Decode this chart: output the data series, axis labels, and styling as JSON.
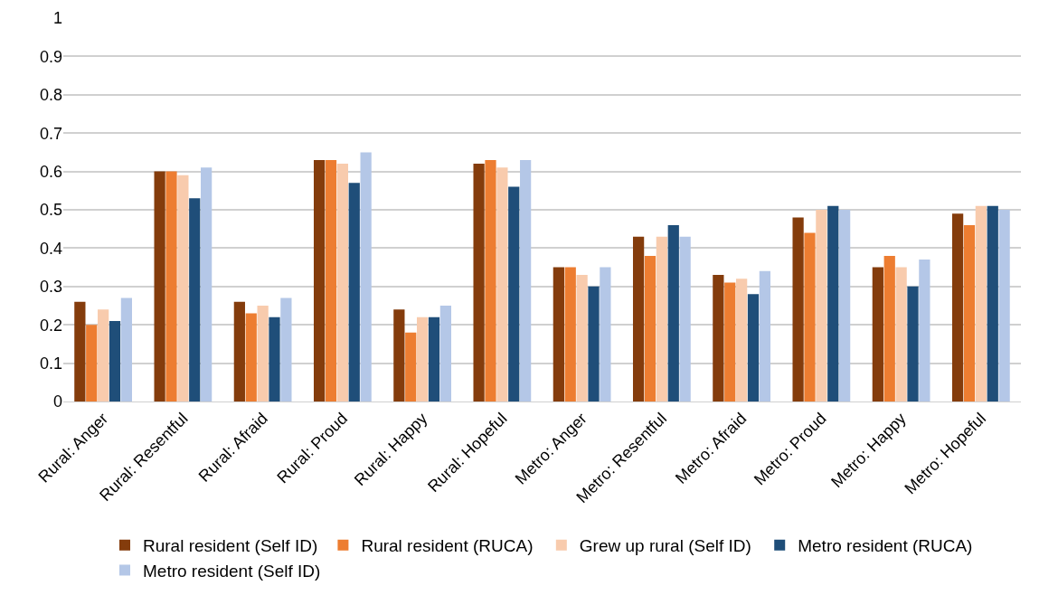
{
  "chart_data": {
    "type": "bar",
    "categories": [
      "Rural: Anger",
      "Rural: Resentful",
      "Rural: Afraid",
      "Rural: Proud",
      "Rural: Happy",
      "Rural: Hopeful",
      "Metro: Anger",
      "Metro: Resentful",
      "Metro: Afraid",
      "Metro: Proud",
      "Metro: Happy",
      "Metro: Hopeful"
    ],
    "series": [
      {
        "name": "Rural resident (Self ID)",
        "color": "#843c0c",
        "values": [
          0.26,
          0.6,
          0.26,
          0.63,
          0.24,
          0.62,
          0.35,
          0.43,
          0.33,
          0.48,
          0.35,
          0.49
        ]
      },
      {
        "name": "Rural resident (RUCA)",
        "color": "#ed7d31",
        "values": [
          0.2,
          0.6,
          0.23,
          0.63,
          0.18,
          0.63,
          0.35,
          0.38,
          0.31,
          0.44,
          0.38,
          0.46
        ]
      },
      {
        "name": "Grew up rural (Self ID)",
        "color": "#f8cbad",
        "values": [
          0.24,
          0.59,
          0.25,
          0.62,
          0.22,
          0.61,
          0.33,
          0.43,
          0.32,
          0.5,
          0.35,
          0.51
        ]
      },
      {
        "name": "Metro resident (RUCA)",
        "color": "#1f4e79",
        "values": [
          0.21,
          0.53,
          0.22,
          0.57,
          0.22,
          0.56,
          0.3,
          0.46,
          0.28,
          0.51,
          0.3,
          0.51
        ]
      },
      {
        "name": "Metro resident (Self ID)",
        "color": "#b4c7e7",
        "values": [
          0.27,
          0.61,
          0.27,
          0.65,
          0.25,
          0.63,
          0.35,
          0.43,
          0.34,
          0.5,
          0.37,
          0.5
        ]
      }
    ],
    "ylim": [
      0,
      1
    ],
    "yticks": [
      0,
      0.1,
      0.2,
      0.3,
      0.4,
      0.5,
      0.6,
      0.7,
      0.8,
      0.9,
      1
    ],
    "grid": "y",
    "legend": "bottom"
  }
}
